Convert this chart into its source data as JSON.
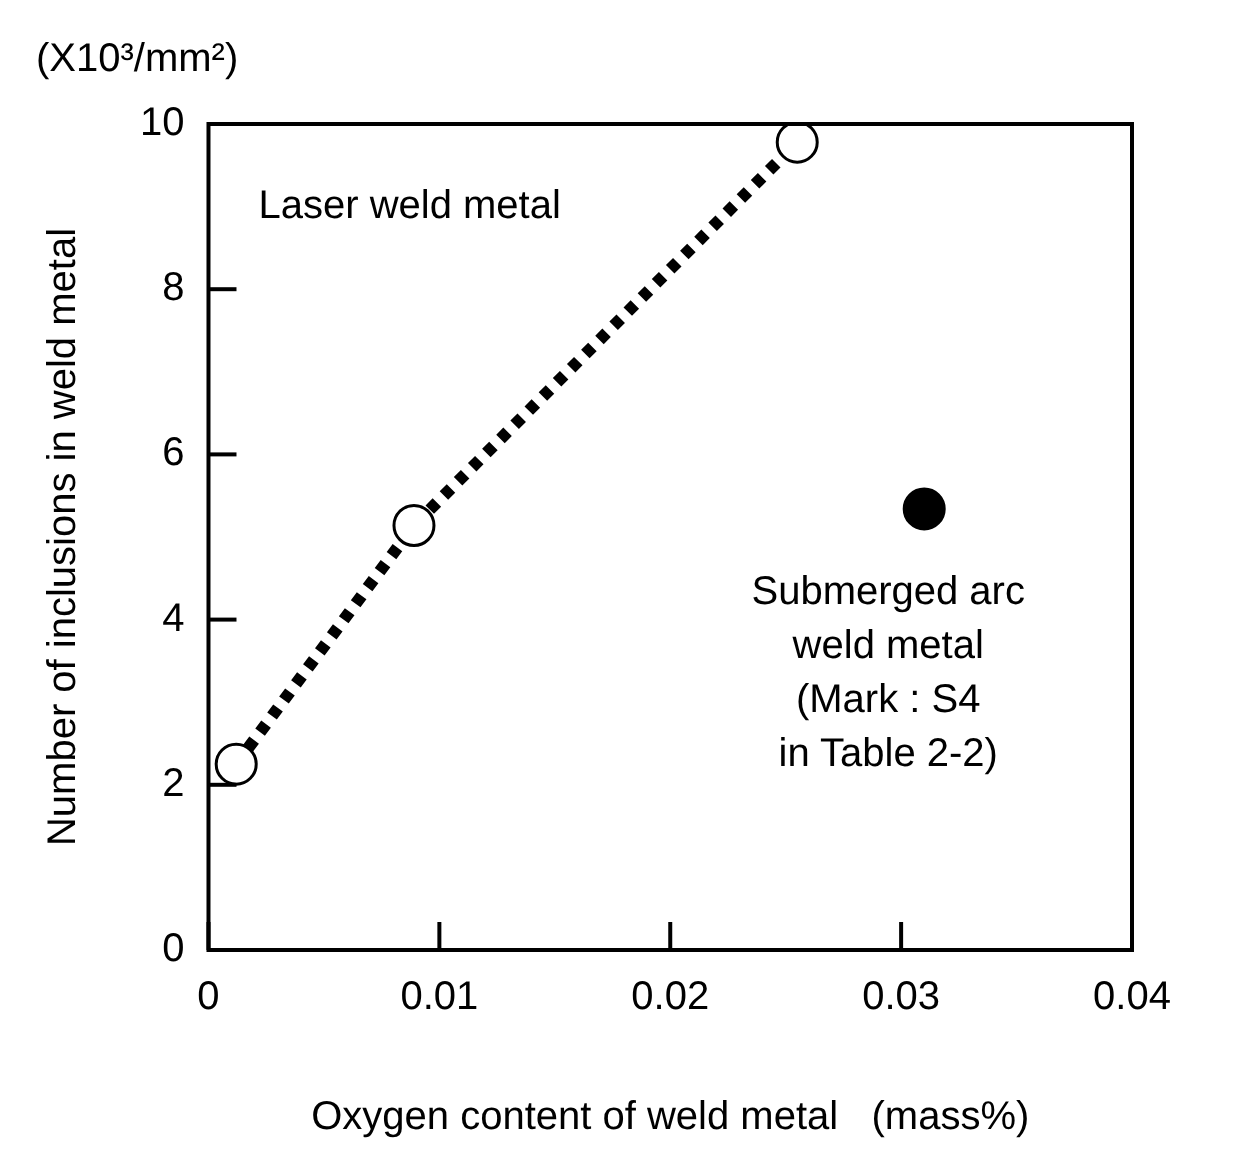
{
  "chart_data": {
    "type": "scatter",
    "xlabel": "Oxygen content of weld metal   (mass%)",
    "ylabel": "Number of inclusions in weld metal",
    "annotations": [
      "(X10³/mm²)",
      "Laser weld metal",
      {
        "text": "Submerged arc\nweld metal\n(Mark : S4\nin Table 2-2)",
        "x": 0.031,
        "y": 5.34
      }
    ],
    "series": [
      {
        "type": "line",
        "color": "#000000",
        "x": [
          0.0012,
          0.0089,
          0.0255
        ],
        "values": [
          2.25,
          5.14,
          9.78
        ],
        "line_style": "dotted"
      },
      {
        "type": "scatter",
        "color": "#000000",
        "x": [
          0.031
        ],
        "values": [
          5.34
        ]
      }
    ],
    "xlim": [
      0,
      0.04
    ],
    "xticks": [
      0,
      0.01,
      0.02,
      0.03,
      0.04
    ],
    "ylim": [
      0,
      10
    ],
    "yticks": [
      0,
      2,
      4,
      6,
      8,
      10
    ],
    "grid": false,
    "legend": false,
    "marker": "circle"
  }
}
